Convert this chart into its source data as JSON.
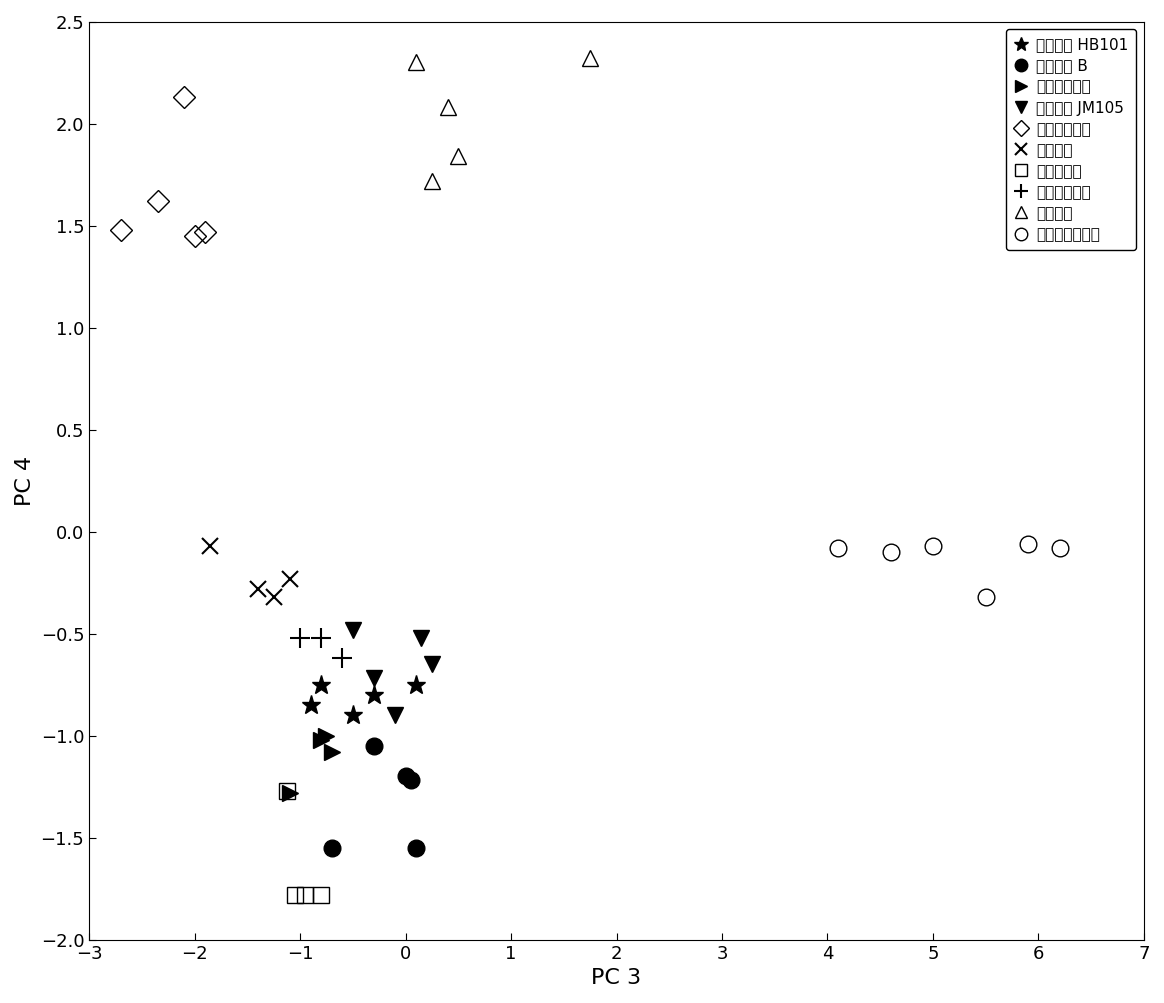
{
  "xlabel": "PC 3",
  "ylabel": "PC 4",
  "xlim": [
    -3,
    7
  ],
  "ylim": [
    -2,
    2.5
  ],
  "xticks": [
    -3,
    -2,
    -1,
    0,
    1,
    2,
    3,
    4,
    5,
    6,
    7
  ],
  "yticks": [
    -2,
    -1.5,
    -1,
    -0.5,
    0,
    0.5,
    1,
    1.5,
    2,
    2.5
  ],
  "series": [
    {
      "label": "大肠杆菌 HB101",
      "marker": "*",
      "color": "black",
      "filled": true,
      "markersize": 14,
      "x": [
        -0.9,
        -0.8,
        -0.5,
        -0.3,
        0.1
      ],
      "y": [
        -0.85,
        -0.75,
        -0.9,
        -0.8,
        -0.75
      ]
    },
    {
      "label": "大肠杆菌 B",
      "marker": "o",
      "color": "black",
      "filled": true,
      "markersize": 12,
      "x": [
        -0.3,
        0.0,
        0.05,
        0.1,
        -0.7
      ],
      "y": [
        -1.05,
        -1.2,
        -1.22,
        -1.55,
        -1.55
      ]
    },
    {
      "label": "大肠杆菌新型",
      "marker": ">",
      "color": "black",
      "filled": true,
      "markersize": 12,
      "x": [
        -1.1,
        -0.8,
        -0.75,
        -0.7
      ],
      "y": [
        -1.28,
        -1.02,
        -1.0,
        -1.08
      ]
    },
    {
      "label": "大肠杆菌 JM105",
      "marker": "v",
      "color": "black",
      "filled": true,
      "markersize": 12,
      "x": [
        -0.5,
        0.15,
        0.25,
        -0.3,
        -0.1
      ],
      "y": [
        -0.48,
        -0.52,
        -0.65,
        -0.72,
        -0.9
      ]
    },
    {
      "label": "普通变形杆菌",
      "marker": "D",
      "color": "black",
      "filled": false,
      "markersize": 11,
      "x": [
        -2.7,
        -2.35,
        -2.1,
        -2.0,
        -1.9
      ],
      "y": [
        1.48,
        1.62,
        2.13,
        1.45,
        1.47
      ]
    },
    {
      "label": "酿酒酵母",
      "marker": "x",
      "color": "black",
      "filled": true,
      "markersize": 11,
      "x": [
        -1.85,
        -1.4,
        -1.25,
        -1.1
      ],
      "y": [
        -0.07,
        -0.28,
        -0.32,
        -0.23
      ]
    },
    {
      "label": "产气肠杆菌",
      "marker": "s",
      "color": "black",
      "filled": false,
      "markersize": 11,
      "x": [
        -1.05,
        -0.95,
        -0.8,
        -1.12
      ],
      "y": [
        -1.78,
        -1.78,
        -1.78,
        -1.27
      ]
    },
    {
      "label": "绿脓假单胞菌",
      "marker": "P",
      "color": "black",
      "filled": true,
      "markersize": 11,
      "x": [
        -1.0,
        -0.8,
        -0.6
      ],
      "y": [
        -0.52,
        -0.52,
        -0.62
      ]
    },
    {
      "label": "粪肠球菌",
      "marker": "^",
      "color": "black",
      "filled": false,
      "markersize": 12,
      "x": [
        1.75,
        0.25,
        0.4,
        0.5,
        0.1
      ],
      "y": [
        2.32,
        1.72,
        2.08,
        1.84,
        2.3
      ]
    },
    {
      "label": "金黄色葡萄球菌",
      "marker": "o",
      "color": "black",
      "filled": false,
      "markersize": 12,
      "x": [
        4.1,
        4.6,
        5.0,
        5.5,
        5.9,
        6.2
      ],
      "y": [
        -0.08,
        -0.1,
        -0.07,
        -0.32,
        -0.06,
        -0.08
      ]
    }
  ]
}
